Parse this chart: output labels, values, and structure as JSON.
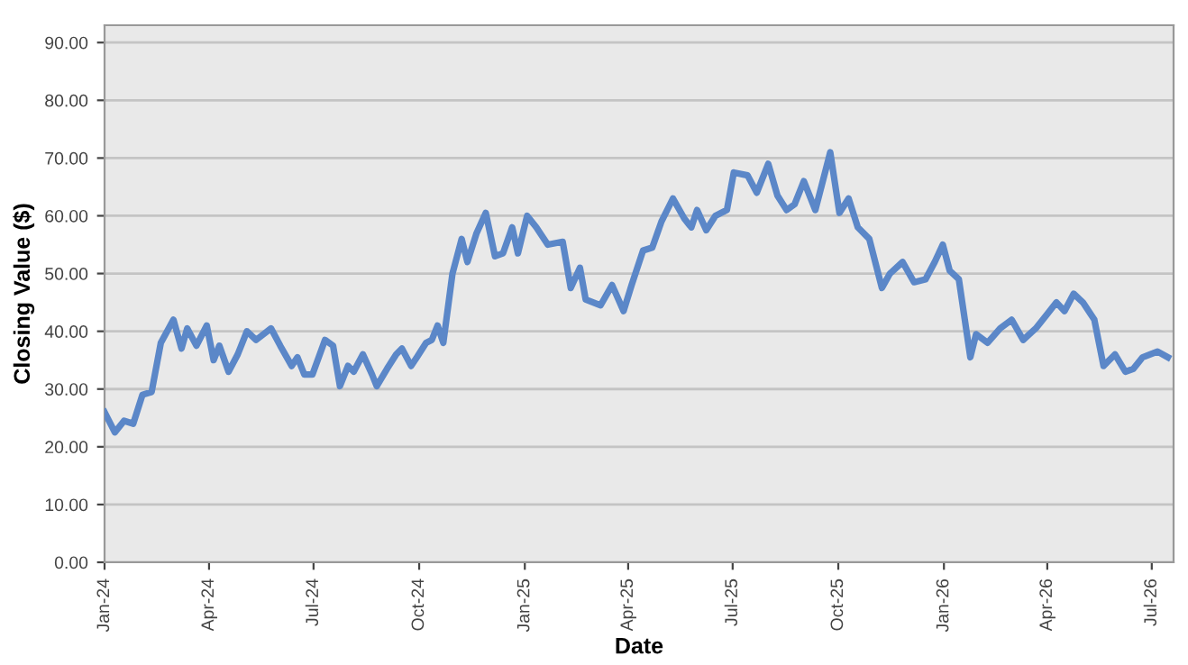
{
  "chart_data": {
    "type": "line",
    "xlabel": "Date",
    "ylabel": "Closing Value ($)",
    "x": [
      "2024-01-01",
      "2024-01-10",
      "2024-01-18",
      "2024-01-26",
      "2024-02-03",
      "2024-02-11",
      "2024-02-19",
      "2024-03-01",
      "2024-03-08",
      "2024-03-13",
      "2024-03-21",
      "2024-03-30",
      "2024-04-05",
      "2024-04-10",
      "2024-04-18",
      "2024-04-26",
      "2024-05-04",
      "2024-05-12",
      "2024-05-25",
      "2024-06-02",
      "2024-06-12",
      "2024-06-17",
      "2024-06-23",
      "2024-06-30",
      "2024-07-11",
      "2024-07-18",
      "2024-07-24",
      "2024-07-31",
      "2024-08-05",
      "2024-08-13",
      "2024-08-21",
      "2024-08-25",
      "2024-09-03",
      "2024-09-11",
      "2024-09-16",
      "2024-09-24",
      "2024-09-29",
      "2024-10-07",
      "2024-10-12",
      "2024-10-17",
      "2024-10-22",
      "2024-10-30",
      "2024-11-07",
      "2024-11-12",
      "2024-11-20",
      "2024-11-28",
      "2024-12-06",
      "2024-12-13",
      "2024-12-21",
      "2024-12-26",
      "2025-01-03",
      "2025-01-11",
      "2025-01-21",
      "2025-02-03",
      "2025-02-10",
      "2025-02-18",
      "2025-02-23",
      "2025-03-08",
      "2025-03-18",
      "2025-03-28",
      "2025-04-04",
      "2025-04-14",
      "2025-04-22",
      "2025-04-30",
      "2025-05-10",
      "2025-05-20",
      "2025-05-26",
      "2025-05-31",
      "2025-06-08",
      "2025-06-16",
      "2025-06-26",
      "2025-07-02",
      "2025-07-14",
      "2025-07-22",
      "2025-08-01",
      "2025-08-09",
      "2025-08-17",
      "2025-08-24",
      "2025-09-01",
      "2025-09-11",
      "2025-09-24",
      "2025-10-02",
      "2025-10-10",
      "2025-10-18",
      "2025-10-28",
      "2025-11-08",
      "2025-11-15",
      "2025-11-26",
      "2025-12-06",
      "2025-12-16",
      "2025-12-24",
      "2025-12-31",
      "2026-01-06",
      "2026-01-14",
      "2026-01-24",
      "2026-01-29",
      "2026-02-08",
      "2026-02-19",
      "2026-03-01",
      "2026-03-11",
      "2026-03-22",
      "2026-04-01",
      "2026-04-09",
      "2026-04-16",
      "2026-04-24",
      "2026-05-02",
      "2026-05-12",
      "2026-05-20",
      "2026-05-30",
      "2026-06-08",
      "2026-06-15",
      "2026-06-23",
      "2026-07-06",
      "2026-07-15"
    ],
    "series": [
      {
        "color": "#5b87c8",
        "values": [
          26,
          22.5,
          24.5,
          24,
          29,
          29.5,
          38,
          42,
          37,
          40.5,
          37.5,
          41,
          35,
          37.5,
          33,
          36,
          40,
          38.5,
          40.5,
          37.5,
          34,
          35.5,
          32.5,
          32.5,
          38.5,
          37.5,
          30.5,
          34,
          33,
          36,
          32.5,
          30.5,
          33.5,
          36,
          37,
          34,
          35.5,
          38,
          38.5,
          41,
          38,
          50,
          56,
          52,
          57,
          60.5,
          53,
          53.5,
          58,
          53.5,
          60,
          58,
          55,
          55.5,
          47.5,
          51,
          45.5,
          44.5,
          48,
          43.5,
          48,
          54,
          54.5,
          59,
          63,
          59.5,
          58,
          61,
          57.5,
          60,
          61,
          67.5,
          67,
          64,
          69,
          63.5,
          61,
          62,
          66,
          61,
          71,
          60.5,
          63,
          58,
          56,
          47.5,
          50,
          52,
          48.5,
          49,
          52,
          55,
          50.5,
          49,
          35.5,
          39.5,
          38,
          40.5,
          42,
          38.5,
          40.5,
          43,
          45,
          43.5,
          46.5,
          45,
          42,
          34,
          36,
          33,
          33.5,
          35.5,
          36.5,
          35.5
        ]
      }
    ],
    "xlim": [
      "2024-01-01",
      "2026-07-20"
    ],
    "xticks": [
      {
        "value": "2024-01-01",
        "label": "Jan-24"
      },
      {
        "value": "2024-04-01",
        "label": "Apr-24"
      },
      {
        "value": "2024-07-01",
        "label": "Jul-24"
      },
      {
        "value": "2024-10-01",
        "label": "Oct-24"
      },
      {
        "value": "2025-01-01",
        "label": "Jan-25"
      },
      {
        "value": "2025-04-01",
        "label": "Apr-25"
      },
      {
        "value": "2025-07-01",
        "label": "Jul-25"
      },
      {
        "value": "2025-10-01",
        "label": "Oct-25"
      },
      {
        "value": "2026-01-01",
        "label": "Jan-26"
      },
      {
        "value": "2026-04-01",
        "label": "Apr-26"
      },
      {
        "value": "2026-07-01",
        "label": "Jul-26"
      }
    ],
    "ylim": [
      0,
      93
    ],
    "yticks": [
      {
        "value": 0,
        "label": "0.00"
      },
      {
        "value": 10,
        "label": "10.00"
      },
      {
        "value": 20,
        "label": "20.00"
      },
      {
        "value": 30,
        "label": "30.00"
      },
      {
        "value": 40,
        "label": "40.00"
      },
      {
        "value": 50,
        "label": "50.00"
      },
      {
        "value": 60,
        "label": "60.00"
      },
      {
        "value": 70,
        "label": "70.00"
      },
      {
        "value": 80,
        "label": "80.00"
      },
      {
        "value": 90,
        "label": "90.00"
      }
    ],
    "grid": "y",
    "marker": "none",
    "line_style": "solid"
  }
}
